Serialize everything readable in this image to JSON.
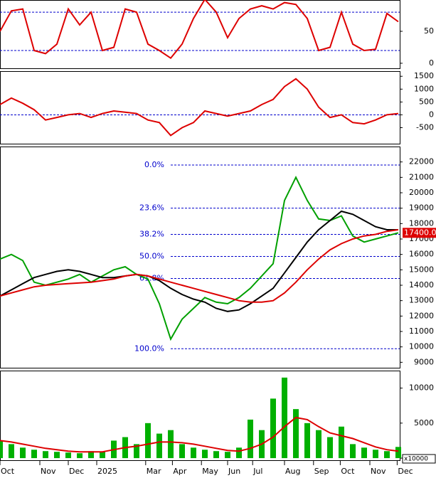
{
  "chart_data": [
    {
      "type": "line",
      "xlim": [
        0,
        70
      ],
      "ylim": [
        -9,
        99
      ],
      "yticks": [
        0,
        50
      ],
      "levels": [
        20,
        80
      ],
      "x": [
        0,
        2,
        4,
        6,
        8,
        10,
        12,
        14,
        16,
        18,
        20,
        22,
        24,
        26,
        28,
        30,
        32,
        34,
        36,
        38,
        40,
        42,
        44,
        46,
        48,
        50,
        52,
        54,
        56,
        58,
        60,
        62,
        64,
        66,
        68,
        70
      ],
      "series": [
        {
          "color": "#dd0000",
          "values": [
            50,
            82,
            85,
            20,
            15,
            30,
            85,
            60,
            80,
            20,
            25,
            85,
            80,
            30,
            20,
            8,
            30,
            70,
            100,
            80,
            40,
            70,
            85,
            90,
            85,
            95,
            92,
            70,
            20,
            25,
            80,
            30,
            20,
            22,
            78,
            65
          ]
        }
      ]
    },
    {
      "type": "line",
      "xlim": [
        0,
        70
      ],
      "ylim": [
        -1150,
        1700
      ],
      "yticks": [
        -500,
        0,
        500,
        1000,
        1500
      ],
      "levels": [
        0
      ],
      "x": [
        0,
        2,
        4,
        6,
        8,
        10,
        12,
        14,
        16,
        18,
        20,
        22,
        24,
        26,
        28,
        30,
        32,
        34,
        36,
        38,
        40,
        42,
        44,
        46,
        48,
        50,
        52,
        54,
        56,
        58,
        60,
        62,
        64,
        66,
        68,
        70
      ],
      "series": [
        {
          "color": "#dd0000",
          "values": [
            400,
            650,
            450,
            200,
            -200,
            -100,
            0,
            50,
            -100,
            50,
            150,
            100,
            50,
            -200,
            -300,
            -800,
            -500,
            -300,
            150,
            50,
            -50,
            50,
            150,
            400,
            600,
            1100,
            1400,
            1000,
            300,
            -100,
            0,
            -300,
            -350,
            -200,
            0,
            50
          ]
        }
      ]
    },
    {
      "type": "line",
      "xlim": [
        0,
        70
      ],
      "ylim": [
        8600,
        23000
      ],
      "yticks": [
        9000,
        10000,
        11000,
        12000,
        13000,
        14000,
        15000,
        16000,
        17000,
        18000,
        19000,
        20000,
        21000,
        22000
      ],
      "x": [
        0,
        2,
        4,
        6,
        8,
        10,
        12,
        14,
        16,
        18,
        20,
        22,
        24,
        26,
        28,
        30,
        32,
        34,
        36,
        38,
        40,
        42,
        44,
        46,
        48,
        50,
        52,
        54,
        56,
        58,
        60,
        62,
        64,
        66,
        68,
        70
      ],
      "series": [
        {
          "color": "#00a000",
          "values": [
            15700,
            16000,
            15600,
            14200,
            14000,
            14200,
            14400,
            14700,
            14200,
            14600,
            15000,
            15200,
            14700,
            14400,
            12800,
            10500,
            11800,
            12500,
            13200,
            12900,
            12800,
            13200,
            13800,
            14600,
            15400,
            19500,
            21000,
            19500,
            18300,
            18200,
            18500,
            17200,
            16800,
            17000,
            17200,
            17400
          ]
        },
        {
          "color": "#000000",
          "values": [
            13300,
            13700,
            14100,
            14500,
            14700,
            14900,
            15000,
            14900,
            14700,
            14500,
            14500,
            14600,
            14700,
            14600,
            14300,
            13800,
            13400,
            13100,
            12900,
            12500,
            12300,
            12400,
            12800,
            13300,
            13800,
            14800,
            15800,
            16800,
            17600,
            18200,
            18800,
            18600,
            18200,
            17800,
            17600,
            17600
          ]
        },
        {
          "color": "#dd0000",
          "values": [
            13300,
            13500,
            13700,
            13900,
            14000,
            14050,
            14100,
            14150,
            14200,
            14300,
            14400,
            14600,
            14700,
            14600,
            14400,
            14200,
            14000,
            13800,
            13600,
            13400,
            13200,
            13000,
            12900,
            12900,
            13000,
            13500,
            14200,
            15000,
            15700,
            16300,
            16700,
            17000,
            17200,
            17300,
            17500,
            17600
          ]
        }
      ],
      "fib_levels": [
        {
          "label": "0.0%",
          "price": 21800
        },
        {
          "label": "23.6%",
          "price": 19000
        },
        {
          "label": "38.2%",
          "price": 17300
        },
        {
          "label": "50.0%",
          "price": 15870
        },
        {
          "label": "61.8%",
          "price": 14440
        },
        {
          "label": "100.0%",
          "price": 9880
        }
      ],
      "last_price": {
        "value": 17400,
        "label": "17400.0"
      }
    },
    {
      "type": "bar",
      "xlim": [
        0,
        70
      ],
      "ylim": [
        -400,
        12500
      ],
      "yticks": [
        0,
        5000,
        10000
      ],
      "unit_label": "x10000",
      "color": "#00b000",
      "x": [
        0,
        2,
        4,
        6,
        8,
        10,
        12,
        14,
        16,
        18,
        20,
        22,
        24,
        26,
        28,
        30,
        32,
        34,
        36,
        38,
        40,
        42,
        44,
        46,
        48,
        50,
        52,
        54,
        56,
        58,
        60,
        62,
        64,
        66,
        68,
        70
      ],
      "values": [
        2500,
        2000,
        1500,
        1200,
        1000,
        900,
        800,
        700,
        1000,
        900,
        2500,
        3000,
        2000,
        5000,
        3500,
        4000,
        2000,
        1500,
        1200,
        1000,
        900,
        1500,
        5500,
        4000,
        8500,
        11500,
        7000,
        5000,
        4000,
        3000,
        4500,
        2000,
        1500,
        1200,
        1000,
        1600
      ],
      "ma": {
        "color": "#dd0000",
        "values": [
          2500,
          2300,
          2000,
          1700,
          1400,
          1200,
          1000,
          900,
          900,
          900,
          1200,
          1500,
          1700,
          2000,
          2300,
          2300,
          2200,
          2000,
          1700,
          1400,
          1100,
          1000,
          1400,
          2000,
          3000,
          4500,
          5800,
          5500,
          4500,
          3600,
          3200,
          2800,
          2200,
          1600,
          1200,
          1000
        ]
      },
      "xticks": [
        {
          "value": 0,
          "label": "Oct"
        },
        {
          "value": 7,
          "label": "Nov"
        },
        {
          "value": 12,
          "label": "Dec"
        },
        {
          "value": 17,
          "label": "2025"
        },
        {
          "value": 25.6,
          "label": "Mar"
        },
        {
          "value": 30.3,
          "label": "Apr"
        },
        {
          "value": 35.4,
          "label": "May"
        },
        {
          "value": 40,
          "label": "Jun"
        },
        {
          "value": 44.4,
          "label": "Jul"
        },
        {
          "value": 50,
          "label": "Aug"
        },
        {
          "value": 55.1,
          "label": "Sep"
        },
        {
          "value": 59.8,
          "label": "Oct"
        },
        {
          "value": 65,
          "label": "Nov"
        },
        {
          "value": 69.8,
          "label": "Dec"
        }
      ]
    }
  ]
}
